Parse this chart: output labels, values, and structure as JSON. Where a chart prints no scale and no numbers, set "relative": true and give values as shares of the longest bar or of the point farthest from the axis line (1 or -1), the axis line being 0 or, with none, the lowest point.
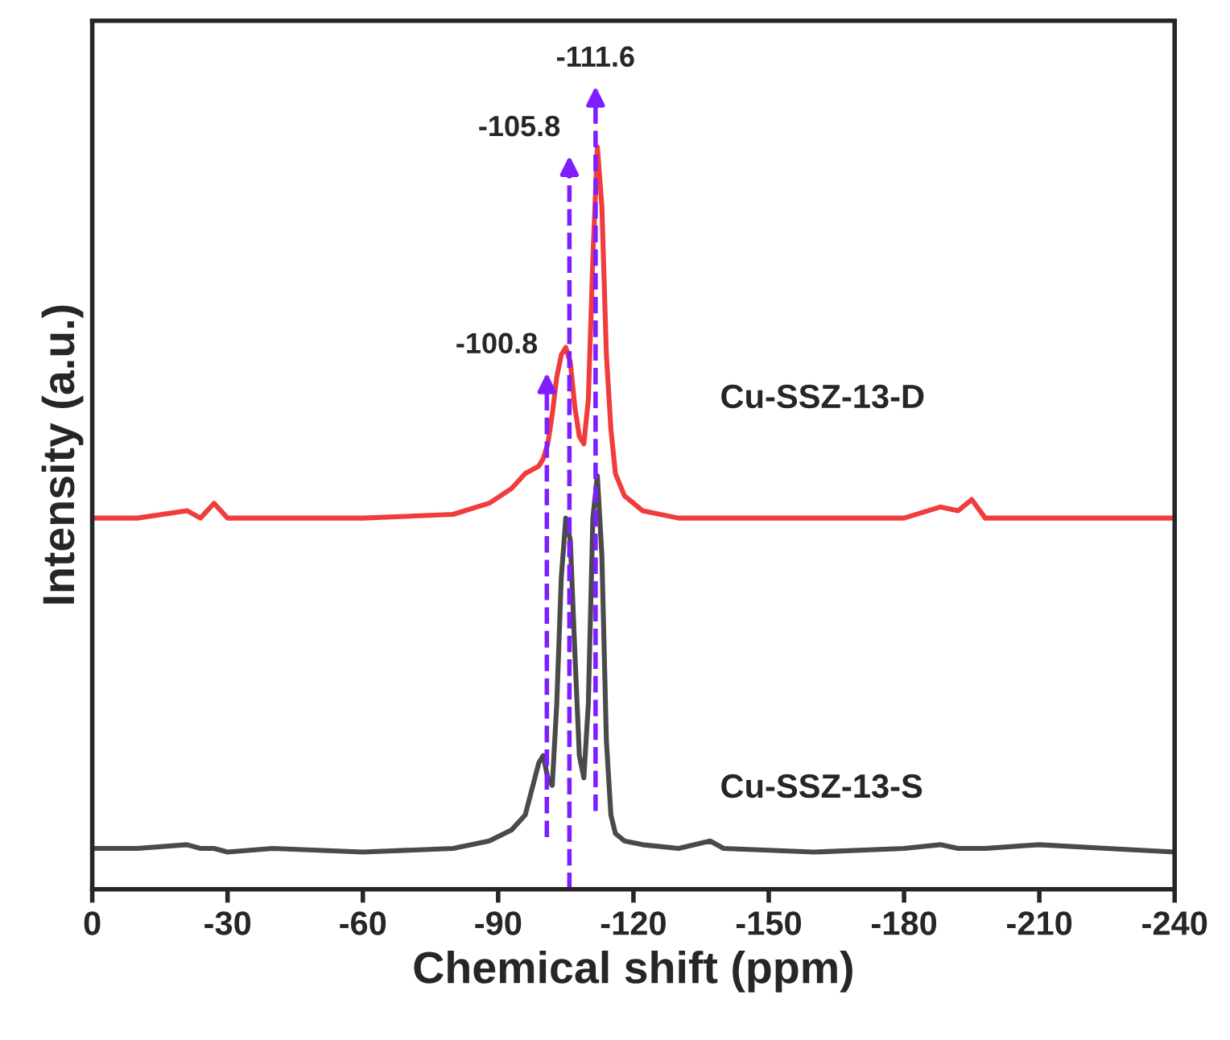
{
  "chart_data": {
    "type": "line",
    "relative": true,
    "xlabel": "Chemical shift (ppm)",
    "ylabel": "Intensity (a.u.)",
    "x": [
      0,
      -10,
      -21,
      -24,
      -27,
      -30,
      -40,
      -60,
      -80,
      -88,
      -93,
      -96,
      -99,
      -100,
      -101,
      -102,
      -103,
      -104,
      -105,
      -106,
      -107,
      -108,
      -109,
      -110,
      -111,
      -112,
      -113,
      -114,
      -115,
      -116,
      -118,
      -122,
      -130,
      -137,
      -140,
      -160,
      -180,
      -188,
      -192,
      -195,
      -198,
      -210,
      -225,
      -240
    ],
    "series": [
      {
        "name": "Cu-SSZ-13-D",
        "color": "#f03c3c",
        "values": [
          0.5,
          0.5,
          0.51,
          0.5,
          0.52,
          0.5,
          0.5,
          0.5,
          0.505,
          0.52,
          0.54,
          0.56,
          0.57,
          0.58,
          0.6,
          0.64,
          0.69,
          0.72,
          0.73,
          0.71,
          0.65,
          0.61,
          0.6,
          0.66,
          0.85,
          1.0,
          0.92,
          0.72,
          0.62,
          0.56,
          0.53,
          0.51,
          0.5,
          0.5,
          0.5,
          0.5,
          0.5,
          0.515,
          0.51,
          0.525,
          0.5,
          0.5,
          0.5,
          0.5
        ]
      },
      {
        "name": "Cu-SSZ-13-S",
        "color": "#4a4a4a",
        "values": [
          0.055,
          0.055,
          0.06,
          0.055,
          0.055,
          0.05,
          0.055,
          0.05,
          0.055,
          0.065,
          0.08,
          0.1,
          0.17,
          0.18,
          0.15,
          0.14,
          0.25,
          0.42,
          0.5,
          0.47,
          0.32,
          0.18,
          0.15,
          0.25,
          0.5,
          0.557,
          0.45,
          0.2,
          0.1,
          0.075,
          0.065,
          0.06,
          0.055,
          0.065,
          0.055,
          0.05,
          0.055,
          0.06,
          0.055,
          0.055,
          0.055,
          0.06,
          0.055,
          0.05
        ]
      }
    ],
    "xlim": [
      0,
      -240
    ],
    "xticks": [
      0,
      -30,
      -60,
      -90,
      -120,
      -150,
      -180,
      -210,
      -240
    ],
    "ref_lines": [
      {
        "axis": "x",
        "value": -100.8,
        "label": "-100.8",
        "color": "#7f1fff",
        "line_style": "dashed"
      },
      {
        "axis": "x",
        "value": -105.8,
        "label": "-105.8",
        "color": "#7f1fff",
        "line_style": "dashed"
      },
      {
        "axis": "x",
        "value": -111.6,
        "label": "-111.6",
        "color": "#7f1fff",
        "line_style": "dashed"
      }
    ],
    "grid": false,
    "legend": false,
    "line_style": "solid",
    "marker": "none"
  }
}
